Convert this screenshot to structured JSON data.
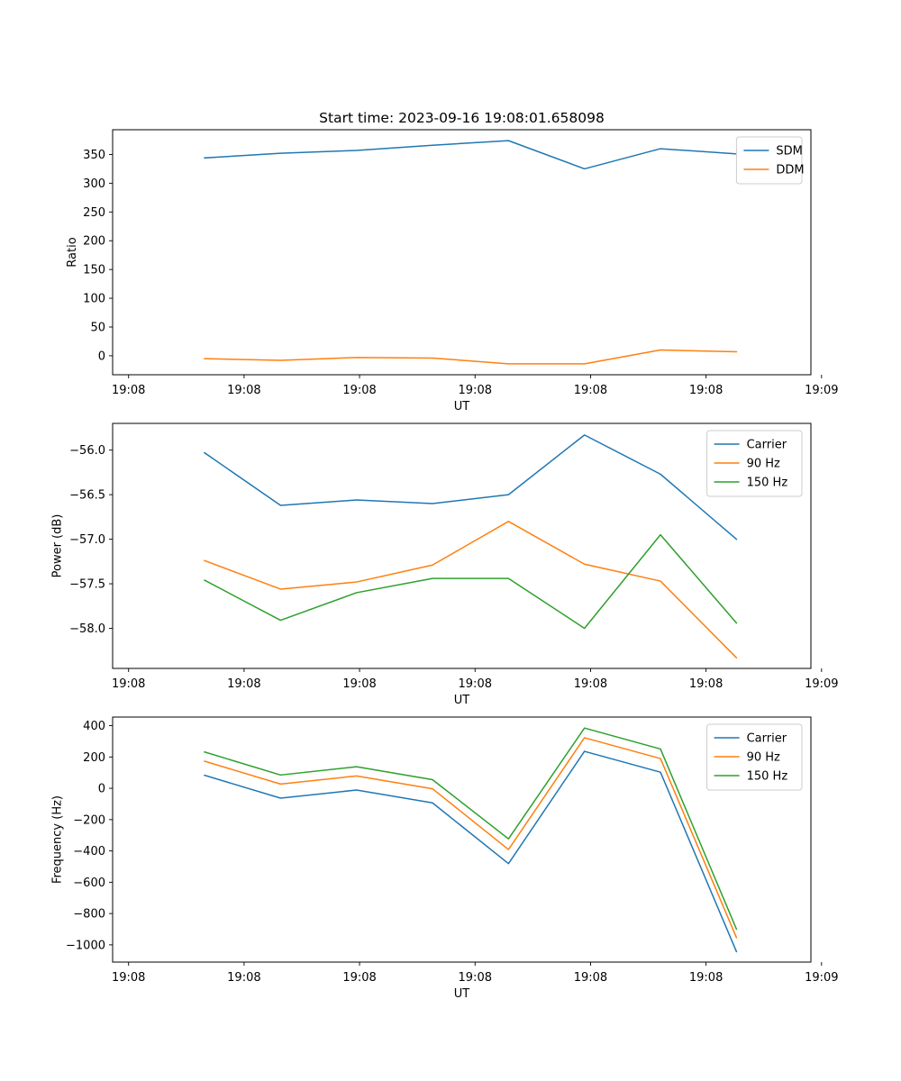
{
  "figure": {
    "title": "Start time: 2023-09-16 19:08:01.658098"
  },
  "chart_data": [
    {
      "type": "line",
      "title": "Start time: 2023-09-16 19:08:01.658098",
      "xlabel": "UT",
      "ylabel": "Ratio",
      "x": [
        1,
        2,
        3,
        4,
        5,
        6,
        7,
        8
      ],
      "xlim": [
        -0.21,
        8.98
      ],
      "x_ticks": [
        0,
        1.52,
        3.04,
        4.56,
        6.08,
        7.6,
        9.12
      ],
      "x_tick_labels": [
        "19:08",
        "19:08",
        "19:08",
        "19:08",
        "19:08",
        "19:08",
        "19:09"
      ],
      "ylim": [
        -33,
        393
      ],
      "y_ticks": [
        0,
        50,
        100,
        150,
        200,
        250,
        300,
        350
      ],
      "y_tick_labels": [
        "0",
        "50",
        "100",
        "150",
        "200",
        "250",
        "300",
        "350"
      ],
      "legend_position": "upper right",
      "series": [
        {
          "name": "SDM",
          "color": "#1f77b4",
          "values": [
            344,
            352,
            357,
            366,
            374,
            325,
            360,
            351
          ]
        },
        {
          "name": "DDM",
          "color": "#ff7f0e",
          "values": [
            -5,
            -8,
            -3,
            -4,
            -14,
            -14,
            10,
            7
          ]
        }
      ]
    },
    {
      "type": "line",
      "title": "",
      "xlabel": "UT",
      "ylabel": "Power (dB)",
      "x": [
        1,
        2,
        3,
        4,
        5,
        6,
        7,
        8
      ],
      "xlim": [
        -0.21,
        8.98
      ],
      "x_ticks": [
        0,
        1.52,
        3.04,
        4.56,
        6.08,
        7.6,
        9.12
      ],
      "x_tick_labels": [
        "19:08",
        "19:08",
        "19:08",
        "19:08",
        "19:08",
        "19:08",
        "19:09"
      ],
      "ylim": [
        -58.45,
        -55.7
      ],
      "y_ticks": [
        -56.0,
        -56.5,
        -57.0,
        -57.5,
        -58.0
      ],
      "y_tick_labels": [
        "−56.0",
        "−56.5",
        "−57.0",
        "−57.5",
        "−58.0"
      ],
      "legend_position": "upper right",
      "series": [
        {
          "name": "Carrier",
          "color": "#1f77b4",
          "values": [
            -56.03,
            -56.62,
            -56.56,
            -56.6,
            -56.5,
            -55.83,
            -56.27,
            -57.0
          ]
        },
        {
          "name": "90 Hz",
          "color": "#ff7f0e",
          "values": [
            -57.24,
            -57.56,
            -57.48,
            -57.29,
            -56.8,
            -57.28,
            -57.47,
            -58.33
          ]
        },
        {
          "name": "150 Hz",
          "color": "#2ca02c",
          "values": [
            -57.46,
            -57.91,
            -57.6,
            -57.44,
            -57.44,
            -58.0,
            -56.95,
            -57.94
          ]
        }
      ]
    },
    {
      "type": "line",
      "title": "",
      "xlabel": "UT",
      "ylabel": "Frequency (Hz)",
      "x": [
        1,
        2,
        3,
        4,
        5,
        6,
        7,
        8
      ],
      "xlim": [
        -0.21,
        8.98
      ],
      "x_ticks": [
        0,
        1.52,
        3.04,
        4.56,
        6.08,
        7.6,
        9.12
      ],
      "x_tick_labels": [
        "19:08",
        "19:08",
        "19:08",
        "19:08",
        "19:08",
        "19:08",
        "19:09"
      ],
      "ylim": [
        -1110,
        455
      ],
      "y_ticks": [
        400,
        200,
        0,
        -200,
        -400,
        -600,
        -800,
        -1000
      ],
      "y_tick_labels": [
        "400",
        "200",
        "0",
        "−200",
        "−400",
        "−600",
        "−800",
        "−1000"
      ],
      "legend_position": "upper right",
      "series": [
        {
          "name": "Carrier",
          "color": "#1f77b4",
          "values": [
            83,
            -63,
            -11,
            -93,
            -481,
            236,
            103,
            -1043
          ]
        },
        {
          "name": "90 Hz",
          "color": "#ff7f0e",
          "values": [
            173,
            27,
            79,
            -3,
            -391,
            323,
            190,
            -953
          ]
        },
        {
          "name": "150 Hz",
          "color": "#2ca02c",
          "values": [
            232,
            85,
            138,
            55,
            -323,
            385,
            251,
            -899
          ]
        }
      ]
    }
  ]
}
